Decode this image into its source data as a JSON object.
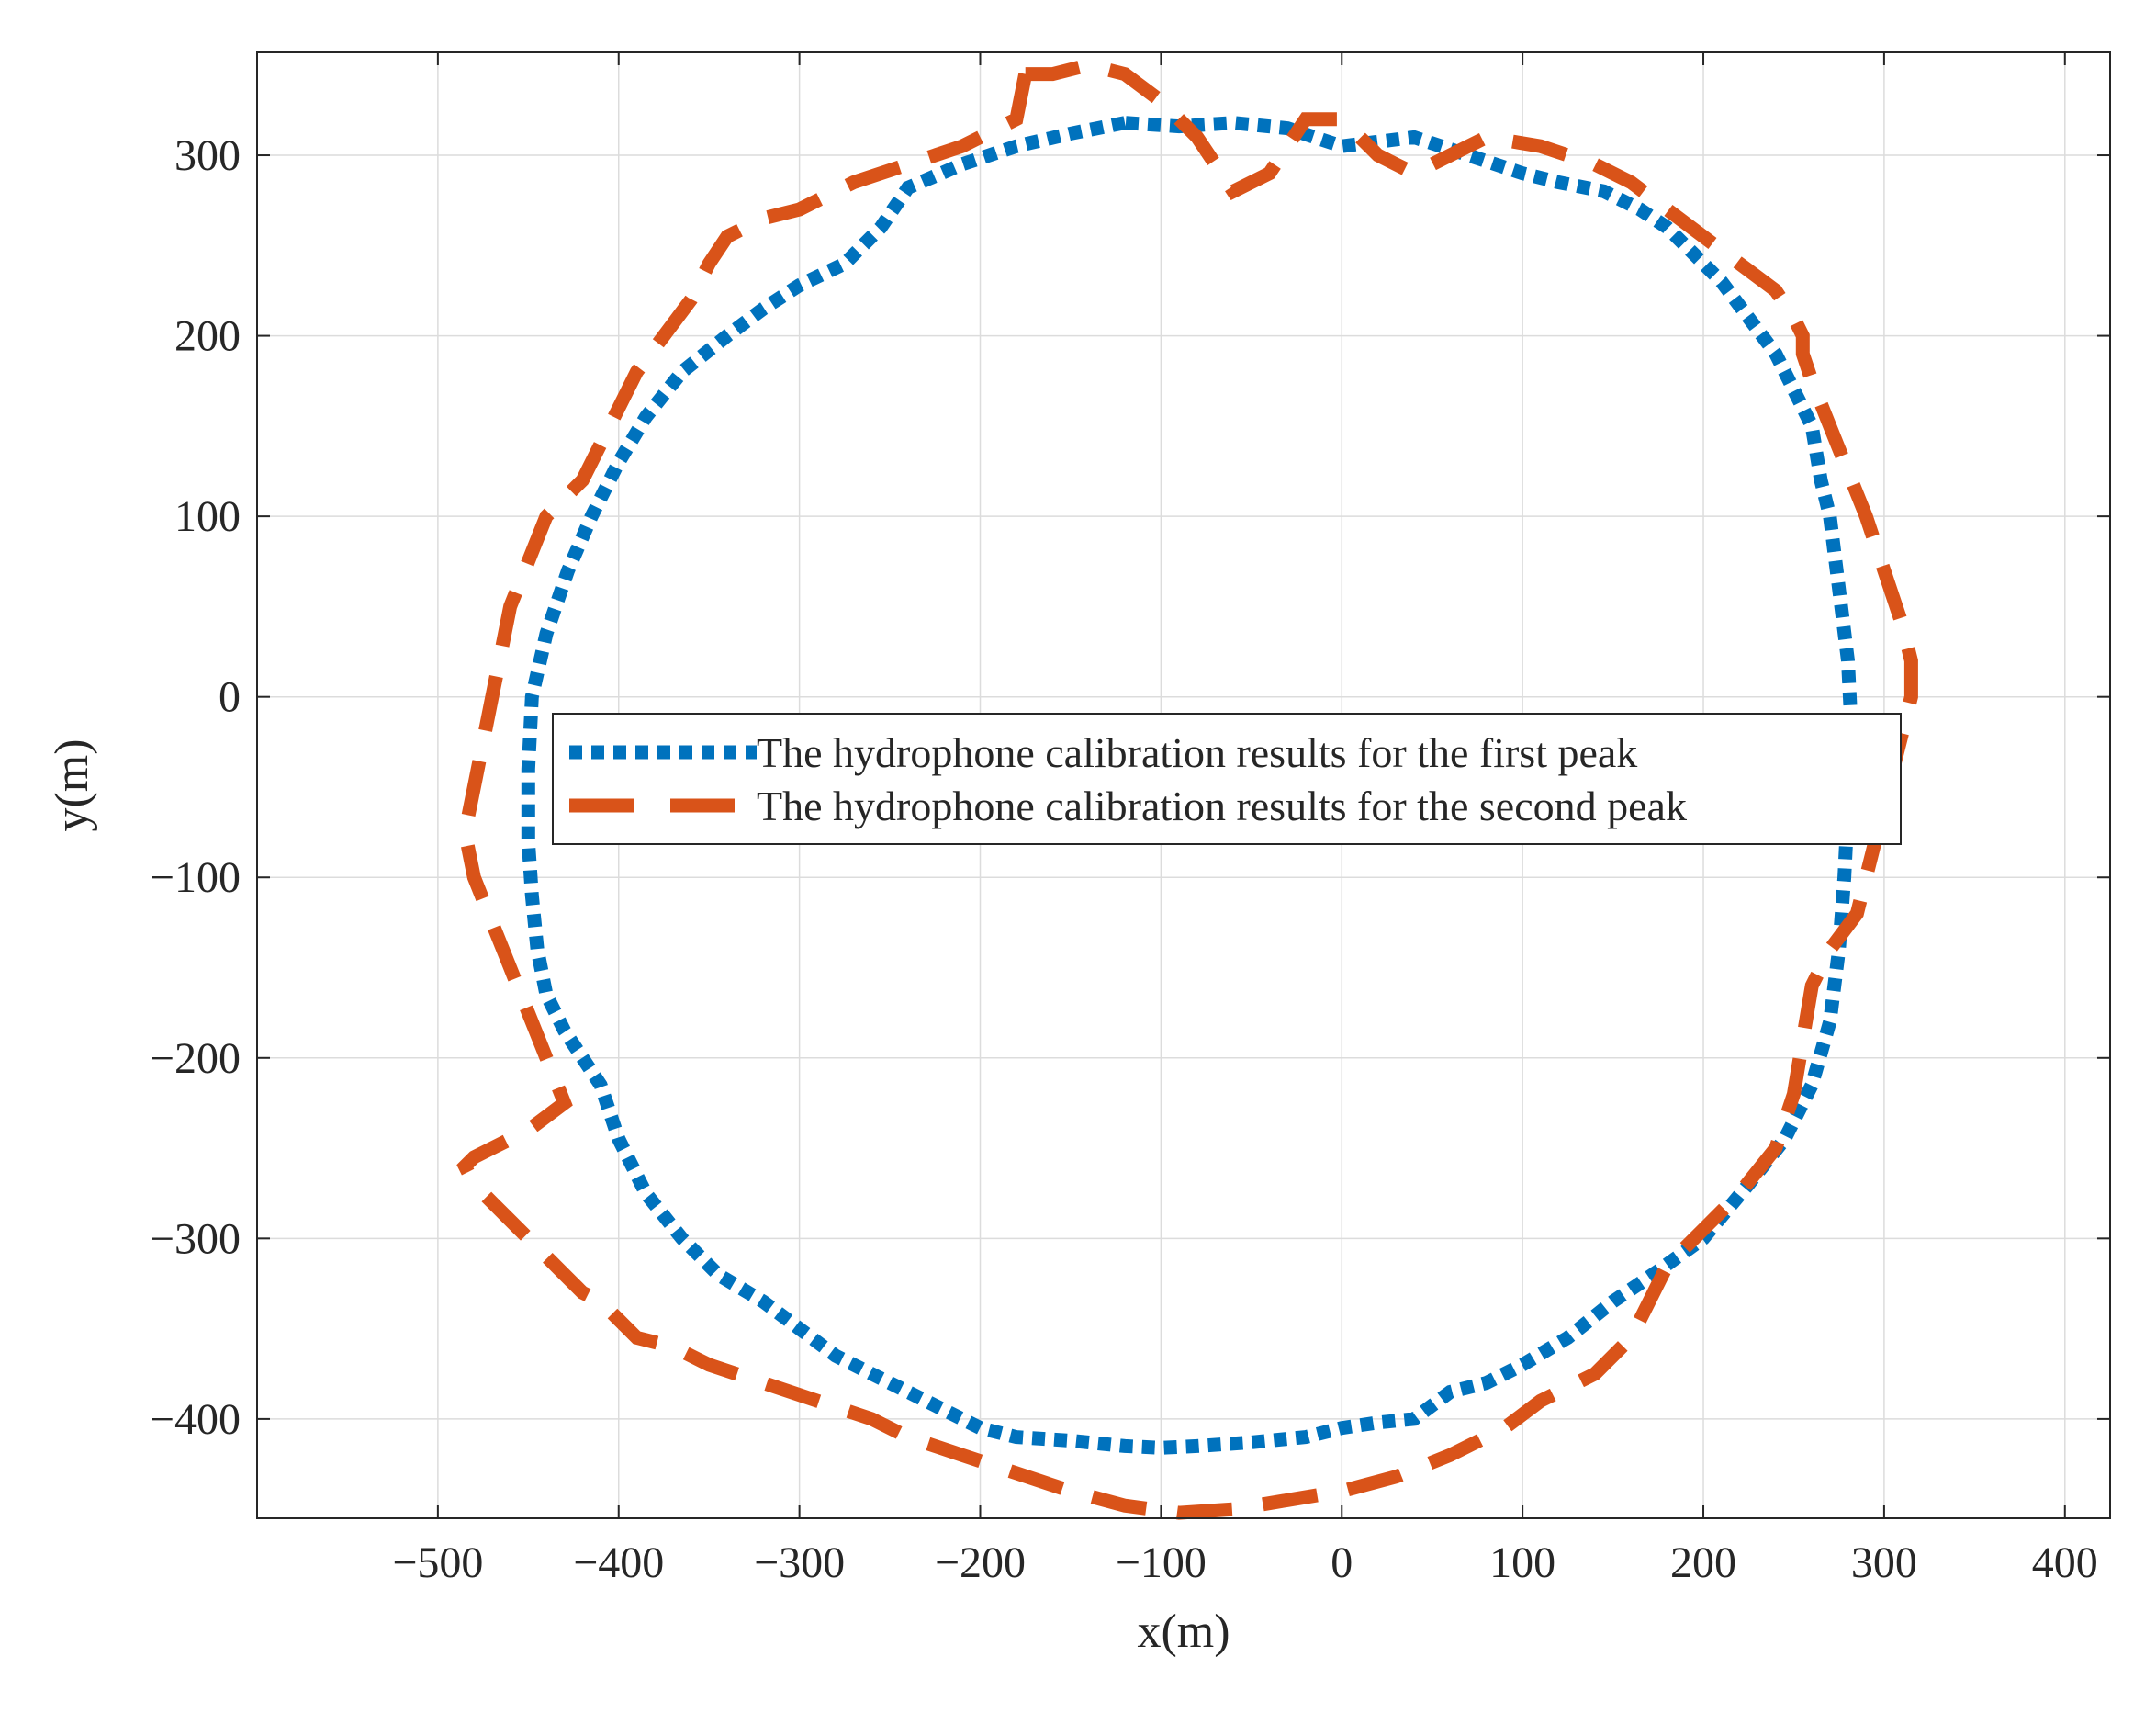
{
  "chart_data": {
    "type": "line",
    "title": "",
    "xlabel": "x(m)",
    "ylabel": "y(m)",
    "xlim": [
      -600,
      425
    ],
    "ylim": [
      -455,
      357
    ],
    "xticks": [
      -500,
      -400,
      -300,
      -200,
      -100,
      0,
      100,
      200,
      300,
      400
    ],
    "yticks": [
      -400,
      -300,
      -200,
      -100,
      0,
      100,
      200,
      300
    ],
    "xtick_labels": [
      "−500",
      "−400",
      "−300",
      "−200",
      "−100",
      "0",
      "100",
      "200",
      "300",
      "400"
    ],
    "ytick_labels": [
      "−400",
      "−300",
      "−200",
      "−100",
      "0",
      "100",
      "200",
      "300"
    ],
    "grid": true,
    "legend_position": "center",
    "series": [
      {
        "name": "The hydrophone calibration results for the first peak",
        "color": "#0072BD",
        "style": "dotted",
        "x": [
          -120,
          -150,
          -180,
          -210,
          -240,
          -255,
          -275,
          -300,
          -320,
          -340,
          -365,
          -385,
          -400,
          -415,
          -428,
          -440,
          -448,
          -450,
          -450,
          -448,
          -445,
          -440,
          -430,
          -420,
          -410,
          -400,
          -385,
          -365,
          -345,
          -320,
          -300,
          -280,
          -260,
          -240,
          -220,
          -200,
          -180,
          -150,
          -120,
          -100,
          -80,
          -50,
          -20,
          0,
          20,
          40,
          60,
          80,
          100,
          125,
          150,
          175,
          200,
          225,
          245,
          260,
          270,
          275,
          278,
          280,
          282,
          280,
          275,
          270,
          265,
          260,
          250,
          240,
          225,
          210,
          195,
          180,
          165,
          145,
          120,
          100,
          70,
          40,
          0,
          -30,
          -60,
          -90,
          -120
        ],
        "y": [
          318,
          312,
          305,
          295,
          282,
          260,
          240,
          228,
          215,
          200,
          180,
          155,
          130,
          100,
          70,
          35,
          0,
          -40,
          -80,
          -110,
          -140,
          -165,
          -185,
          -200,
          -215,
          -245,
          -275,
          -300,
          -320,
          -335,
          -350,
          -365,
          -375,
          -385,
          -395,
          -405,
          -410,
          -412,
          -415,
          -416,
          -415,
          -413,
          -410,
          -405,
          -402,
          -400,
          -385,
          -380,
          -370,
          -355,
          -335,
          -318,
          -300,
          -270,
          -245,
          -215,
          -180,
          -140,
          -100,
          -60,
          -20,
          20,
          60,
          100,
          120,
          150,
          170,
          190,
          210,
          230,
          245,
          260,
          270,
          280,
          285,
          290,
          300,
          310,
          305,
          315,
          318,
          316,
          318
        ]
      },
      {
        "name": "The hydrophone calibration results for the second peak",
        "color": "#D95319",
        "style": "dashed",
        "x": [
          -175,
          -180,
          -210,
          -240,
          -270,
          -300,
          -320,
          -340,
          -350,
          -360,
          -375,
          -390,
          -400,
          -410,
          -420,
          -440,
          -450,
          -460,
          -465,
          -470,
          -475,
          -480,
          -485,
          -480,
          -470,
          -460,
          -450,
          -440,
          -430,
          -450,
          -470,
          -480,
          -485,
          -480,
          -470,
          -460,
          -450,
          -440,
          -430,
          -420,
          -410,
          -400,
          -390,
          -370,
          -350,
          -320,
          -290,
          -260,
          -240,
          -210,
          -180,
          -150,
          -120,
          -90,
          -60,
          -30,
          0,
          30,
          60,
          90,
          110,
          140,
          160,
          170,
          180,
          200,
          220,
          240,
          250,
          255,
          260,
          270,
          285,
          290,
          295,
          300,
          305,
          310,
          315,
          315,
          310,
          300,
          290,
          280,
          270,
          260,
          255,
          255,
          250,
          240,
          220,
          200,
          180,
          160,
          140,
          110,
          80,
          60,
          40,
          20,
          0,
          -20,
          -40,
          -60,
          -80,
          -100,
          -120,
          -140,
          -160,
          -175
        ],
        "y": [
          345,
          320,
          305,
          295,
          285,
          270,
          265,
          255,
          240,
          220,
          200,
          180,
          160,
          140,
          120,
          100,
          75,
          50,
          25,
          0,
          -25,
          -50,
          -75,
          -100,
          -125,
          -150,
          -175,
          -200,
          -225,
          -240,
          -250,
          -255,
          -260,
          -270,
          -280,
          -290,
          -300,
          -310,
          -320,
          -330,
          -335,
          -345,
          -355,
          -360,
          -370,
          -380,
          -390,
          -400,
          -410,
          -420,
          -430,
          -440,
          -448,
          -452,
          -450,
          -445,
          -440,
          -432,
          -420,
          -405,
          -390,
          -375,
          -355,
          -335,
          -315,
          -295,
          -275,
          -250,
          -220,
          -190,
          -160,
          -140,
          -120,
          -100,
          -80,
          -60,
          -40,
          -20,
          0,
          20,
          40,
          70,
          100,
          125,
          150,
          175,
          190,
          200,
          210,
          225,
          240,
          255,
          270,
          285,
          295,
          305,
          310,
          300,
          290,
          300,
          320,
          320,
          290,
          280,
          310,
          330,
          345,
          350,
          345,
          345
        ]
      }
    ]
  }
}
